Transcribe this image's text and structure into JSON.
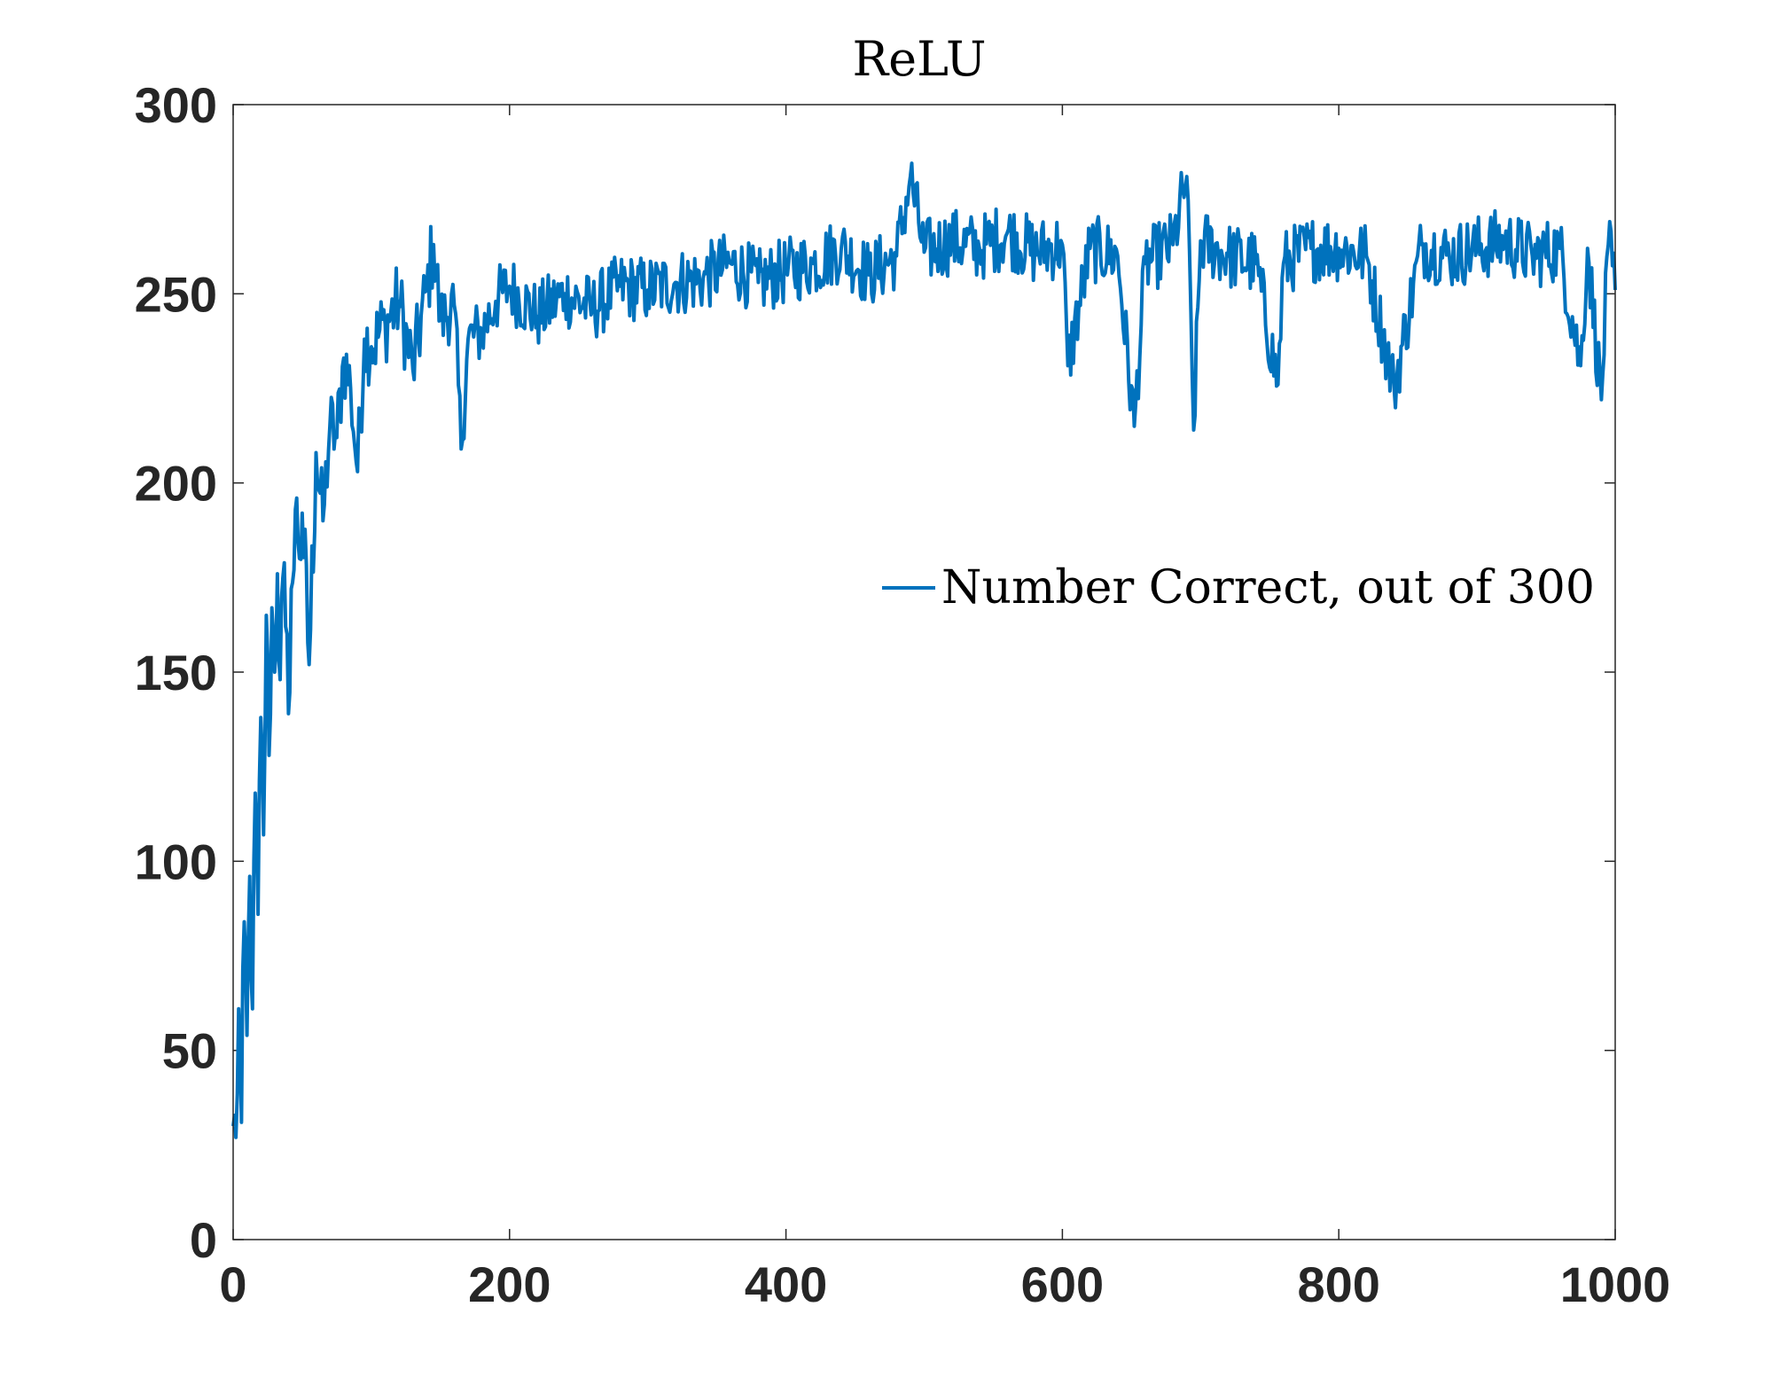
{
  "chart_data": {
    "type": "line",
    "title": "ReLU",
    "xlabel": "",
    "ylabel": "",
    "xlim": [
      0,
      1000
    ],
    "ylim": [
      0,
      300
    ],
    "x_ticks": [
      0,
      200,
      400,
      600,
      800,
      1000
    ],
    "y_ticks": [
      0,
      50,
      100,
      150,
      200,
      250,
      300
    ],
    "grid": false,
    "legend_position": "right",
    "line_color": "#0072BD",
    "series": [
      {
        "name": "Number Correct, out of 300",
        "x": [
          0,
          2,
          4,
          6,
          8,
          10,
          12,
          14,
          16,
          18,
          20,
          22,
          24,
          26,
          28,
          30,
          32,
          34,
          36,
          38,
          40,
          42,
          44,
          46,
          48,
          50,
          55,
          60,
          65,
          70,
          75,
          80,
          85,
          90,
          95,
          100,
          110,
          120,
          130,
          140,
          145,
          150,
          160,
          165,
          170,
          180,
          190,
          200,
          220,
          240,
          260,
          280,
          300,
          320,
          340,
          360,
          380,
          400,
          420,
          440,
          460,
          480,
          490,
          500,
          520,
          540,
          560,
          580,
          600,
          604,
          620,
          640,
          652,
          660,
          680,
          690,
          695,
          700,
          720,
          740,
          756,
          760,
          780,
          800,
          820,
          840,
          860,
          880,
          900,
          920,
          940,
          960,
          975,
          980,
          990,
          995,
          1000
        ],
        "y": [
          30,
          27,
          61,
          31,
          84,
          54,
          96,
          61,
          118,
          86,
          138,
          107,
          165,
          128,
          167,
          150,
          176,
          148,
          175,
          162,
          139,
          172,
          177,
          196,
          180,
          192,
          152,
          208,
          190,
          215,
          212,
          233,
          225,
          203,
          238,
          236,
          242,
          248,
          230,
          251,
          263,
          243,
          247,
          209,
          238,
          240,
          248,
          252,
          244,
          250,
          246,
          252,
          251,
          253,
          254,
          258,
          253,
          256,
          258,
          262,
          255,
          260,
          281,
          261,
          264,
          262,
          266,
          261,
          263,
          231,
          262,
          260,
          215,
          258,
          263,
          281,
          214,
          264,
          260,
          258,
          226,
          258,
          262,
          262,
          260,
          225,
          263,
          260,
          262,
          264,
          260,
          262,
          231,
          262,
          222,
          263,
          251
        ]
      }
    ]
  }
}
